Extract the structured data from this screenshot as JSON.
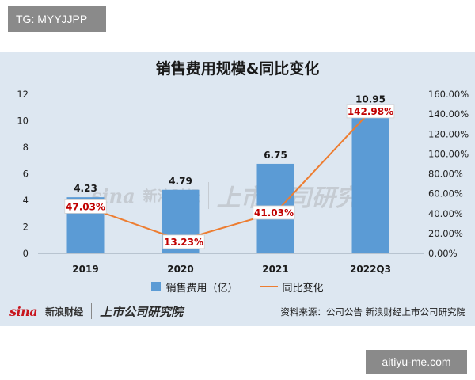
{
  "badge_top": "TG: MYYJJPP",
  "badge_bottom": "aitiyu-me.com",
  "colors": {
    "panel_bg": "#dde7f1",
    "bar": "#5b9bd5",
    "line": "#ed7d31",
    "pct_label": "#c00000"
  },
  "chart_data": {
    "type": "bar+line",
    "title": "销售费用规模&同比变化",
    "categories": [
      "2019",
      "2020",
      "2021",
      "2022Q3"
    ],
    "series": [
      {
        "name": "销售费用（亿）",
        "type": "bar",
        "axis": "left",
        "values": [
          4.23,
          4.79,
          6.75,
          10.95
        ],
        "labels": [
          "4.23",
          "4.79",
          "6.75",
          "10.95"
        ]
      },
      {
        "name": "同比变化",
        "type": "line",
        "axis": "right",
        "values": [
          47.03,
          13.23,
          41.03,
          142.98
        ],
        "labels": [
          "47.03%",
          "13.23%",
          "41.03%",
          "142.98%"
        ]
      }
    ],
    "y_left": {
      "min": 0,
      "max": 12,
      "ticks": [
        "0",
        "2",
        "4",
        "6",
        "8",
        "10",
        "12"
      ]
    },
    "y_right": {
      "min": 0,
      "max": 160,
      "ticks": [
        "0.00%",
        "20.00%",
        "40.00%",
        "60.00%",
        "80.00%",
        "100.00%",
        "120.00%",
        "140.00%",
        "160.00%"
      ]
    },
    "grid": false,
    "legend_position": "bottom"
  },
  "watermark": {
    "sina": "sina",
    "caijing": "新浪财经",
    "ssgs": "上市公司研究院"
  },
  "footer": {
    "brand_sina": "sina",
    "brand_caijing": "新浪财经",
    "brand_ssgs": "上市公司研究院",
    "source": "资料来源：公司公告 新浪财经上市公司研究院"
  }
}
